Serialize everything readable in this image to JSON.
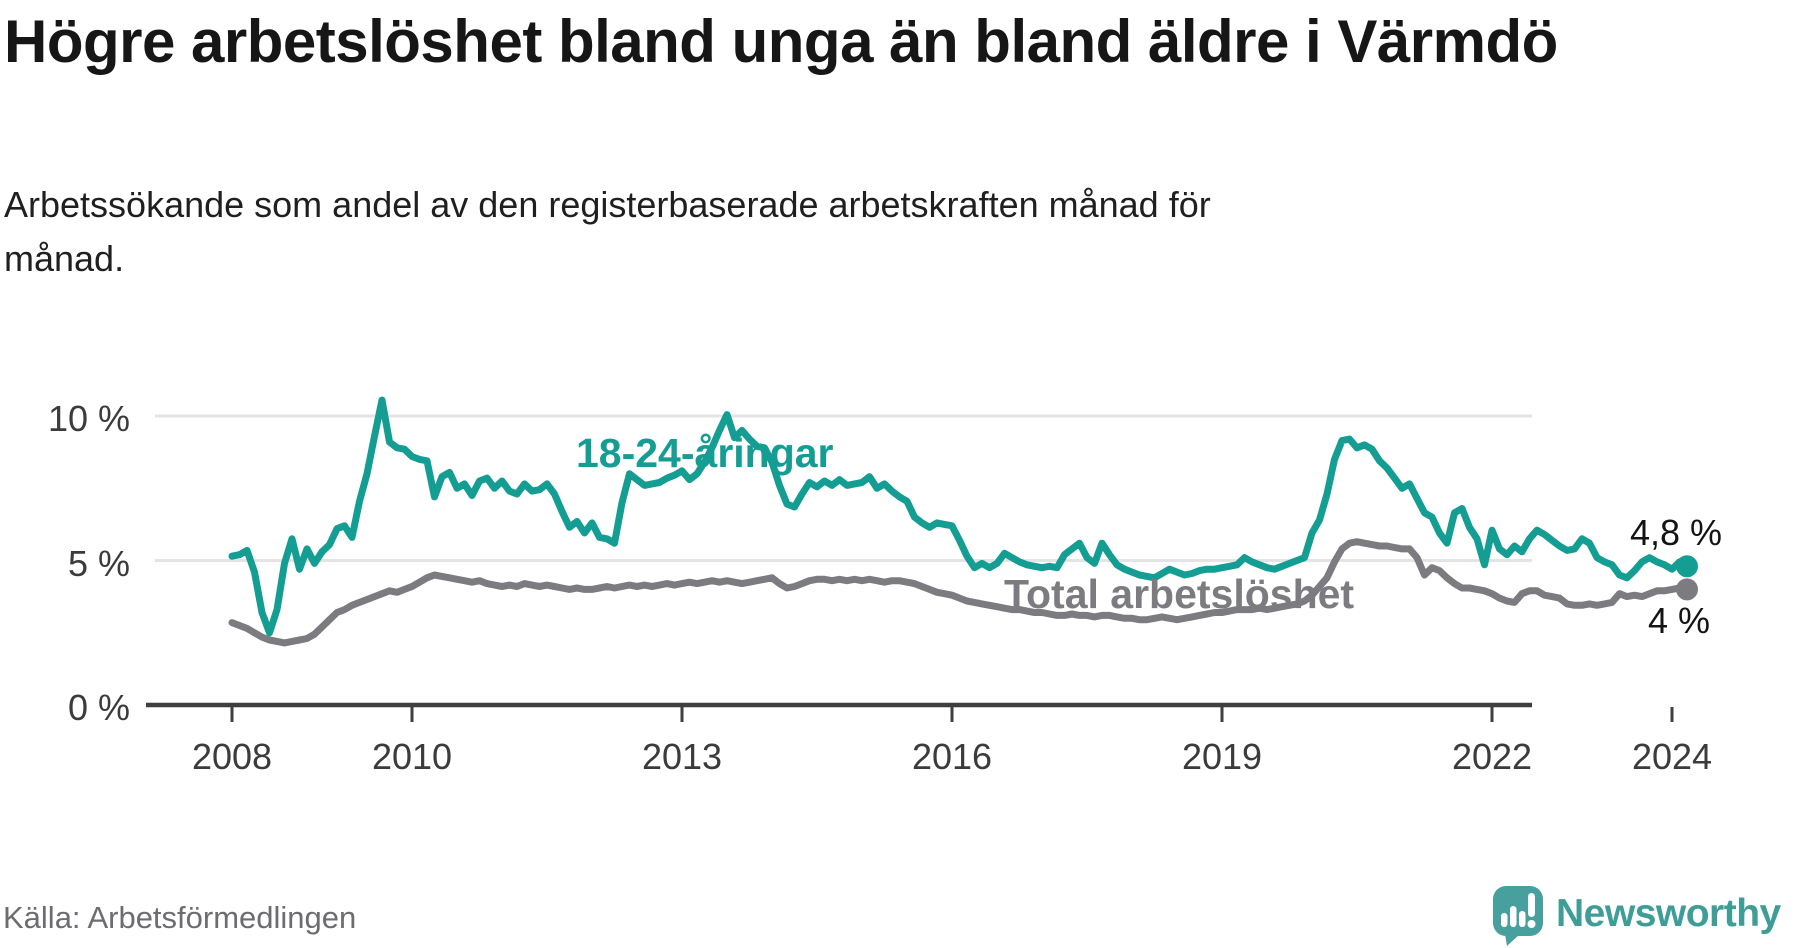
{
  "header": {
    "title": "Högre arbetslöshet bland unga än bland äldre i Värmdö",
    "subtitle": "Arbetssökande som andel av den registerbaserade arbetskraften månad för månad."
  },
  "footer": {
    "source": "Källa: Arbetsförmedlingen",
    "brand": "Newsworthy",
    "brand_color": "#3f9d98",
    "logo_color": "#47a09d"
  },
  "chart_data": {
    "type": "line",
    "title": "Högre arbetslöshet bland unga än bland äldre i Värmdö",
    "subtitle": "Arbetssökande som andel av den registerbaserade arbetskraften månad för månad.",
    "xlabel": "",
    "ylabel": "",
    "x_unit": "monthly from 2008-01 to 2024-03",
    "x_start_year": 2008,
    "x_end_year_fraction": 2024.17,
    "ylim": [
      0,
      10.8
    ],
    "grid": "horizontal gridlines at 5 and 10, dark baseline at 0",
    "legend": "inline labels next to lines",
    "y_ticks": [
      {
        "value": 0,
        "label": "0 %"
      },
      {
        "value": 5,
        "label": "5 %"
      },
      {
        "value": 10,
        "label": "10 %"
      }
    ],
    "x_ticks": [
      2008,
      2010,
      2013,
      2016,
      2019,
      2022,
      2024
    ],
    "x_tick_labels": [
      "2008",
      "2010",
      "2013",
      "2016",
      "2019",
      "2022",
      "2024"
    ],
    "series": [
      {
        "name": "Total arbetslöshet",
        "color": "#7c7c80",
        "end_label": "4 %",
        "end_value": 4.0,
        "values": [
          2.85,
          2.75,
          2.65,
          2.5,
          2.35,
          2.25,
          2.2,
          2.15,
          2.2,
          2.25,
          2.3,
          2.45,
          2.7,
          2.95,
          3.2,
          3.3,
          3.45,
          3.55,
          3.65,
          3.75,
          3.85,
          3.95,
          3.9,
          4.0,
          4.1,
          4.25,
          4.4,
          4.5,
          4.45,
          4.4,
          4.35,
          4.3,
          4.25,
          4.3,
          4.2,
          4.15,
          4.1,
          4.15,
          4.1,
          4.2,
          4.15,
          4.1,
          4.15,
          4.1,
          4.05,
          4.0,
          4.05,
          4.0,
          4.0,
          4.05,
          4.1,
          4.05,
          4.1,
          4.15,
          4.1,
          4.15,
          4.1,
          4.15,
          4.2,
          4.15,
          4.2,
          4.25,
          4.2,
          4.25,
          4.3,
          4.25,
          4.3,
          4.25,
          4.2,
          4.25,
          4.3,
          4.35,
          4.4,
          4.2,
          4.05,
          4.1,
          4.2,
          4.3,
          4.35,
          4.35,
          4.3,
          4.35,
          4.3,
          4.35,
          4.3,
          4.35,
          4.3,
          4.25,
          4.3,
          4.3,
          4.25,
          4.2,
          4.1,
          4.0,
          3.9,
          3.85,
          3.8,
          3.7,
          3.6,
          3.55,
          3.5,
          3.45,
          3.4,
          3.35,
          3.3,
          3.3,
          3.25,
          3.2,
          3.2,
          3.15,
          3.1,
          3.1,
          3.15,
          3.1,
          3.1,
          3.05,
          3.1,
          3.1,
          3.05,
          3.0,
          3.0,
          2.95,
          2.95,
          3.0,
          3.05,
          3.0,
          2.95,
          3.0,
          3.05,
          3.1,
          3.15,
          3.2,
          3.2,
          3.25,
          3.3,
          3.3,
          3.3,
          3.35,
          3.3,
          3.35,
          3.4,
          3.45,
          3.5,
          3.6,
          3.8,
          4.1,
          4.4,
          4.95,
          5.4,
          5.6,
          5.65,
          5.6,
          5.55,
          5.5,
          5.5,
          5.45,
          5.4,
          5.4,
          5.1,
          4.5,
          4.75,
          4.65,
          4.4,
          4.2,
          4.05,
          4.05,
          4.0,
          3.95,
          3.85,
          3.7,
          3.6,
          3.55,
          3.85,
          3.95,
          3.95,
          3.8,
          3.75,
          3.7,
          3.5,
          3.45,
          3.45,
          3.5,
          3.45,
          3.5,
          3.55,
          3.85,
          3.75,
          3.8,
          3.75,
          3.85,
          3.95,
          3.95,
          4.0,
          4.05,
          4.0
        ]
      },
      {
        "name": "18-24-åringar",
        "color": "#149d93",
        "end_label": "4,8 %",
        "end_value": 4.8,
        "values": [
          5.15,
          5.2,
          5.35,
          4.6,
          3.2,
          2.5,
          3.3,
          4.9,
          5.75,
          4.7,
          5.4,
          4.9,
          5.3,
          5.55,
          6.1,
          6.2,
          5.8,
          7.05,
          8.0,
          9.3,
          10.55,
          9.1,
          8.9,
          8.85,
          8.6,
          8.5,
          8.45,
          7.2,
          7.9,
          8.05,
          7.5,
          7.65,
          7.25,
          7.75,
          7.85,
          7.5,
          7.75,
          7.4,
          7.3,
          7.65,
          7.4,
          7.45,
          7.65,
          7.3,
          6.7,
          6.15,
          6.35,
          5.95,
          6.3,
          5.8,
          5.75,
          5.6,
          7.0,
          8.0,
          7.8,
          7.6,
          7.65,
          7.7,
          7.85,
          7.95,
          8.1,
          7.8,
          8.0,
          8.4,
          8.9,
          9.5,
          10.05,
          9.25,
          9.5,
          9.2,
          8.95,
          8.9,
          8.4,
          7.6,
          6.95,
          6.85,
          7.3,
          7.7,
          7.55,
          7.75,
          7.6,
          7.8,
          7.6,
          7.65,
          7.7,
          7.9,
          7.5,
          7.65,
          7.4,
          7.2,
          7.05,
          6.5,
          6.3,
          6.15,
          6.3,
          6.25,
          6.2,
          5.7,
          5.15,
          4.75,
          4.9,
          4.75,
          4.9,
          5.25,
          5.1,
          4.95,
          4.85,
          4.8,
          4.75,
          4.8,
          4.75,
          5.2,
          5.4,
          5.6,
          5.1,
          4.9,
          5.6,
          5.2,
          4.85,
          4.7,
          4.6,
          4.5,
          4.45,
          4.4,
          4.55,
          4.7,
          4.6,
          4.5,
          4.55,
          4.65,
          4.7,
          4.7,
          4.75,
          4.8,
          4.85,
          5.1,
          4.95,
          4.85,
          4.75,
          4.7,
          4.8,
          4.9,
          5.0,
          5.1,
          5.95,
          6.4,
          7.3,
          8.5,
          9.15,
          9.2,
          8.9,
          9.0,
          8.85,
          8.45,
          8.2,
          7.85,
          7.5,
          7.65,
          7.15,
          6.65,
          6.5,
          5.95,
          5.6,
          6.65,
          6.8,
          6.15,
          5.75,
          4.85,
          6.05,
          5.4,
          5.2,
          5.5,
          5.3,
          5.75,
          6.05,
          5.9,
          5.7,
          5.5,
          5.35,
          5.4,
          5.75,
          5.6,
          5.1,
          4.95,
          4.85,
          4.5,
          4.4,
          4.65,
          4.95,
          5.1,
          4.95,
          4.85,
          4.7,
          4.95,
          4.8
        ]
      }
    ]
  }
}
